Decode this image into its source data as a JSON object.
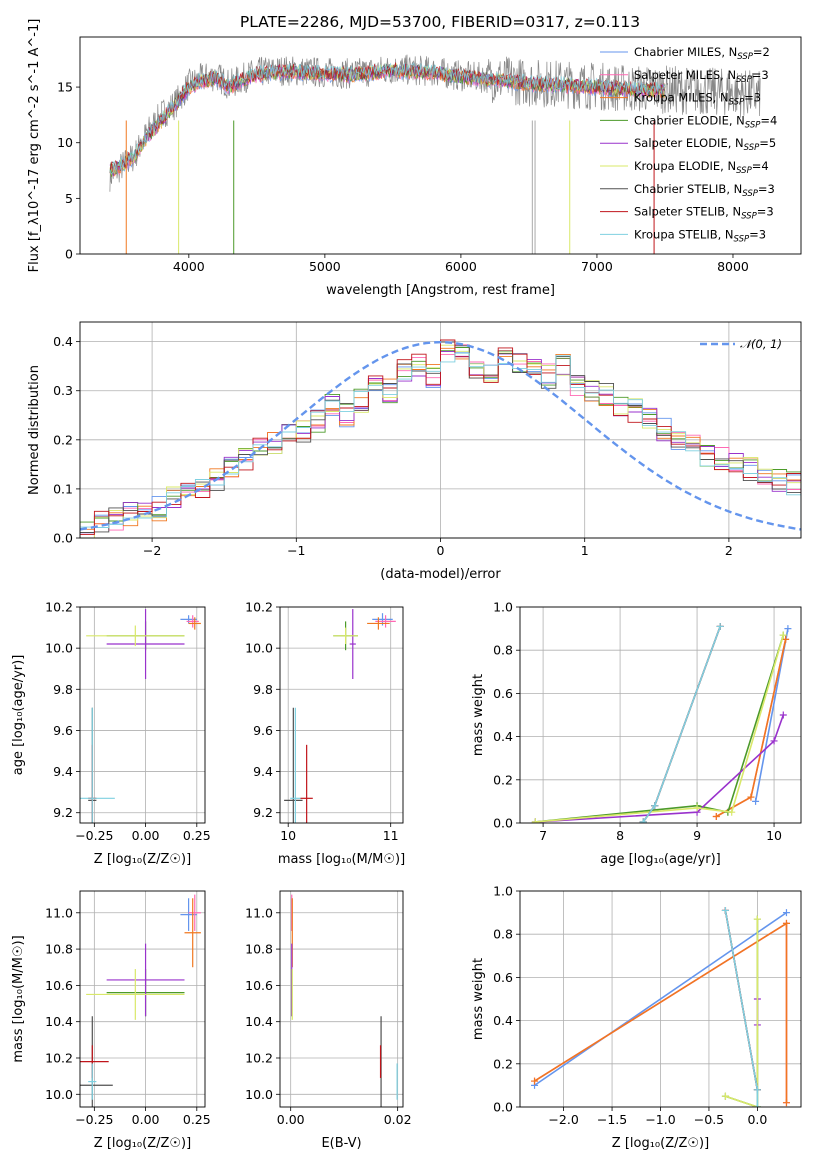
{
  "title": "PLATE=2286, MJD=53700, FIBERID=0317, z=0.113",
  "colors": {
    "chabrier_miles": "#6495ED",
    "salpeter_miles": "#FF69B4",
    "kroupa_miles": "#F07820",
    "chabrier_elodie": "#4C9A2A",
    "salpeter_elodie": "#9932CC",
    "kroupa_elodie": "#D9E86A",
    "chabrier_stelib": "#505050",
    "salpeter_stelib": "#C0151B",
    "kroupa_stelib": "#7FD0E0"
  },
  "chart_data": [
    {
      "type": "line",
      "panel": "spectrum",
      "xlabel": "wavelength [Angstrom, rest frame]",
      "ylabel": "Flux [f_λ10^-17 erg cm^-2 s^-1 A^-1]",
      "xlim": [
        3200,
        8500
      ],
      "ylim": [
        0,
        19.5
      ],
      "xticks": [
        "4000",
        "5000",
        "6000",
        "7000",
        "8000"
      ],
      "yticks": [
        "0",
        "5",
        "10",
        "15"
      ],
      "grid": false,
      "legend_position": "top-right",
      "legend": [
        {
          "label": "Chabrier MILES, N",
          "sub": "SSP",
          "n": "=2"
        },
        {
          "label": "Salpeter MILES, N",
          "sub": "SSP",
          "n": "=3"
        },
        {
          "label": "Kroupa MILES, N",
          "sub": "SSP",
          "n": "=3"
        },
        {
          "label": "Chabrier ELODIE, N",
          "sub": "SSP",
          "n": "=4"
        },
        {
          "label": "Salpeter ELODIE, N",
          "sub": "SSP",
          "n": "=5"
        },
        {
          "label": "Kroupa ELODIE, N",
          "sub": "SSP",
          "n": "=4"
        },
        {
          "label": "Chabrier STELIB, N",
          "sub": "SSP",
          "n": "=3"
        },
        {
          "label": "Salpeter STELIB, N",
          "sub": "SSP",
          "n": "=3"
        },
        {
          "label": "Kroupa STELIB, N",
          "sub": "SSP",
          "n": "=3"
        }
      ],
      "data_series": {
        "name": "data",
        "x": [
          3420,
          3500,
          3600,
          3700,
          3800,
          3900,
          4000,
          4100,
          4200,
          4300,
          4400,
          4500,
          4700,
          5000,
          5200,
          5500,
          5800,
          6000,
          6300,
          6500,
          6700,
          7000,
          7200,
          7500,
          7800,
          8000,
          8200
        ],
        "y": [
          7.0,
          7.8,
          8.8,
          11.0,
          12.5,
          13.5,
          15.2,
          15.8,
          16.0,
          15.2,
          15.8,
          16.3,
          16.5,
          16.3,
          16.2,
          16.6,
          16.4,
          16.0,
          15.7,
          15.4,
          15.3,
          15.1,
          14.9,
          14.8,
          14.6,
          14.5,
          14.3
        ]
      },
      "model_series": {
        "x": [
          3420,
          3500,
          3600,
          3700,
          3800,
          3900,
          4000,
          4100,
          4200,
          4300,
          4400,
          4500,
          4700,
          5000,
          5200,
          5500,
          5800,
          6000,
          6300,
          6500,
          6700,
          7000,
          7200,
          7500
        ],
        "y": [
          7.5,
          7.9,
          8.8,
          10.6,
          12.0,
          13.4,
          15.0,
          15.6,
          15.8,
          15.0,
          15.7,
          16.1,
          16.4,
          16.2,
          16.1,
          16.5,
          16.3,
          15.9,
          15.6,
          15.3,
          15.2,
          15.0,
          14.8,
          14.7
        ]
      }
    },
    {
      "type": "line",
      "panel": "residual-histogram",
      "xlabel": "(data-model)/error",
      "ylabel": "Normed distribution",
      "xlim": [
        -2.5,
        2.5
      ],
      "ylim": [
        0,
        0.44
      ],
      "xticks": [
        "−2",
        "−1",
        "0",
        "1",
        "2"
      ],
      "yticks": [
        "0.0",
        "0.1",
        "0.2",
        "0.3",
        "0.4"
      ],
      "grid": true,
      "legend_position": "top-right",
      "legend": [
        "𝒩(0, 1)"
      ],
      "gaussian_label": "𝒩(0, 1)",
      "bin_edges_start": -2.5,
      "bin_width": 0.1,
      "hist_values": [
        0.02,
        0.03,
        0.04,
        0.05,
        0.05,
        0.06,
        0.08,
        0.09,
        0.1,
        0.12,
        0.14,
        0.16,
        0.18,
        0.19,
        0.21,
        0.22,
        0.24,
        0.27,
        0.25,
        0.28,
        0.32,
        0.3,
        0.34,
        0.35,
        0.33,
        0.38,
        0.37,
        0.35,
        0.33,
        0.37,
        0.36,
        0.34,
        0.33,
        0.35,
        0.31,
        0.3,
        0.29,
        0.27,
        0.26,
        0.24,
        0.22,
        0.2,
        0.19,
        0.17,
        0.16,
        0.15,
        0.14,
        0.13,
        0.12,
        0.11
      ],
      "series_names_from_spectrum_legend": true
    },
    {
      "type": "scatter",
      "panel": "Z-vs-age",
      "xlabel": "Z [log₁₀(Z/Z☉)]",
      "ylabel": "age [log₁₀(age/yr)]",
      "xlim": [
        -0.32,
        0.29
      ],
      "ylim": [
        9.15,
        10.2
      ],
      "xticks": [
        "−0.25",
        "0.00",
        "0.25"
      ],
      "yticks": [
        "9.2",
        "9.4",
        "9.6",
        "9.8",
        "10.0",
        "10.2"
      ],
      "grid": true,
      "points": [
        {
          "s": "chabrier_miles",
          "x": 0.21,
          "y": 10.14,
          "ex": 0.04,
          "ey": 0.02
        },
        {
          "s": "salpeter_miles",
          "x": 0.23,
          "y": 10.13,
          "ex": 0.03,
          "ey": 0.03
        },
        {
          "s": "kroupa_miles",
          "x": 0.24,
          "y": 10.12,
          "ex": 0.03,
          "ey": 0.03
        },
        {
          "s": "chabrier_elodie",
          "x": 0.0,
          "y": 10.06,
          "ex": 0.19,
          "ey": 0.07
        },
        {
          "s": "salpeter_elodie",
          "x": 0.0,
          "y": 10.02,
          "ex": 0.19,
          "ey": 0.17
        },
        {
          "s": "kroupa_elodie",
          "x": -0.05,
          "y": 10.06,
          "ex": 0.24,
          "ey": 0.05
        },
        {
          "s": "chabrier_stelib",
          "x": -0.26,
          "y": 9.26,
          "ex": 0.02,
          "ey": 0.45
        },
        {
          "s": "salpeter_stelib",
          "x": -0.26,
          "y": 9.27,
          "ex": 0.02,
          "ey": 0.26
        },
        {
          "s": "kroupa_stelib",
          "x": -0.26,
          "y": 9.27,
          "ex": 0.11,
          "ey": 0.44
        }
      ]
    },
    {
      "type": "scatter",
      "panel": "mass-vs-age",
      "xlabel": "mass [log₁₀(M/M☉)]",
      "xlim": [
        9.92,
        11.12
      ],
      "ylim": [
        9.15,
        10.2
      ],
      "xticks": [
        "10",
        "11"
      ],
      "yticks": [
        "9.2",
        "9.4",
        "9.6",
        "9.8",
        "10.0",
        "10.2"
      ],
      "grid": true,
      "points": [
        {
          "s": "chabrier_miles",
          "x": 10.92,
          "y": 10.14,
          "ex": 0.1,
          "ey": 0.03
        },
        {
          "s": "salpeter_miles",
          "x": 10.95,
          "y": 10.13,
          "ex": 0.1,
          "ey": 0.03
        },
        {
          "s": "kroupa_miles",
          "x": 10.88,
          "y": 10.12,
          "ex": 0.11,
          "ey": 0.03
        },
        {
          "s": "chabrier_elodie",
          "x": 10.56,
          "y": 10.06,
          "ex": 0.12,
          "ey": 0.07
        },
        {
          "s": "salpeter_elodie",
          "x": 10.63,
          "y": 10.02,
          "ex": 0.03,
          "ey": 0.17
        },
        {
          "s": "kroupa_elodie",
          "x": 10.56,
          "y": 10.06,
          "ex": 0.12,
          "ey": 0.04
        },
        {
          "s": "chabrier_stelib",
          "x": 10.05,
          "y": 9.26,
          "ex": 0.09,
          "ey": 0.45
        },
        {
          "s": "salpeter_stelib",
          "x": 10.18,
          "y": 9.27,
          "ex": 0.06,
          "ey": 0.26
        },
        {
          "s": "kroupa_stelib",
          "x": 10.07,
          "y": 9.27,
          "ex": 0.05,
          "ey": 0.44
        }
      ]
    },
    {
      "type": "line",
      "panel": "age-vs-mass-weight",
      "xlabel": "age [log₁₀(age/yr)]",
      "ylabel": "mass weight",
      "xlim": [
        6.7,
        10.35
      ],
      "ylim": [
        0,
        1.0
      ],
      "xticks": [
        "7",
        "8",
        "9",
        "10"
      ],
      "yticks": [
        "0.0",
        "0.2",
        "0.4",
        "0.6",
        "0.8",
        "1.0"
      ],
      "grid": true,
      "series": [
        {
          "s": "chabrier_miles",
          "x": [
            9.76,
            10.18
          ],
          "y": [
            0.1,
            0.9
          ]
        },
        {
          "s": "salpeter_miles",
          "x": [
            9.25,
            9.7,
            10.15
          ],
          "y": [
            0.03,
            0.12,
            0.85
          ]
        },
        {
          "s": "kroupa_miles",
          "x": [
            9.25,
            9.7,
            10.15
          ],
          "y": [
            0.03,
            0.12,
            0.85
          ]
        },
        {
          "s": "chabrier_elodie",
          "x": [
            6.9,
            9.0,
            9.4,
            10.12
          ],
          "y": [
            0.005,
            0.08,
            0.05,
            0.87
          ]
        },
        {
          "s": "salpeter_elodie",
          "x": [
            6.9,
            9.0,
            10.0,
            10.12
          ],
          "y": [
            0.005,
            0.05,
            0.38,
            0.5
          ]
        },
        {
          "s": "kroupa_elodie",
          "x": [
            6.9,
            9.0,
            9.45,
            10.12
          ],
          "y": [
            0.005,
            0.07,
            0.05,
            0.87
          ]
        },
        {
          "s": "chabrier_stelib",
          "x": [
            8.3,
            8.45,
            9.3
          ],
          "y": [
            0.005,
            0.08,
            0.91
          ]
        },
        {
          "s": "salpeter_stelib",
          "x": [
            8.3,
            8.45,
            9.3
          ],
          "y": [
            0.005,
            0.08,
            0.91
          ]
        },
        {
          "s": "kroupa_stelib",
          "x": [
            8.3,
            8.45,
            9.3
          ],
          "y": [
            0.005,
            0.08,
            0.91
          ]
        }
      ]
    },
    {
      "type": "scatter",
      "panel": "Z-vs-mass",
      "xlabel": "Z [log₁₀(Z/Z☉)]",
      "ylabel": "mass [log₁₀(M/M☉)]",
      "xlim": [
        -0.32,
        0.29
      ],
      "ylim": [
        9.93,
        11.12
      ],
      "xticks": [
        "−0.25",
        "0.00",
        "0.25"
      ],
      "yticks": [
        "10.0",
        "10.2",
        "10.4",
        "10.6",
        "10.8",
        "11.0"
      ],
      "grid": true,
      "points": [
        {
          "s": "chabrier_miles",
          "x": 0.21,
          "y": 10.99,
          "ex": 0.04,
          "ey": 0.09
        },
        {
          "s": "salpeter_miles",
          "x": 0.24,
          "y": 11.0,
          "ex": 0.03,
          "ey": 0.1
        },
        {
          "s": "kroupa_miles",
          "x": 0.23,
          "y": 10.89,
          "ex": 0.04,
          "ey": 0.19
        },
        {
          "s": "chabrier_elodie",
          "x": 0.0,
          "y": 10.56,
          "ex": 0.19,
          "ey": 0.13
        },
        {
          "s": "salpeter_elodie",
          "x": 0.0,
          "y": 10.63,
          "ex": 0.19,
          "ey": 0.2
        },
        {
          "s": "kroupa_elodie",
          "x": -0.05,
          "y": 10.55,
          "ex": 0.24,
          "ey": 0.14
        },
        {
          "s": "chabrier_stelib",
          "x": -0.26,
          "y": 10.05,
          "ex": 0.1,
          "ey": 0.38
        },
        {
          "s": "salpeter_stelib",
          "x": -0.26,
          "y": 10.18,
          "ex": 0.08,
          "ey": 0.09
        },
        {
          "s": "kroupa_stelib",
          "x": -0.26,
          "y": 10.07,
          "ex": 0.02,
          "ey": 0.1
        }
      ]
    },
    {
      "type": "scatter",
      "panel": "EBV-vs-mass",
      "xlabel": "E(B-V)",
      "xlim": [
        -0.002,
        0.021
      ],
      "ylim": [
        9.93,
        11.12
      ],
      "xticks": [
        "0.00",
        "0.02"
      ],
      "yticks": [
        "10.0",
        "10.2",
        "10.4",
        "10.6",
        "10.8",
        "11.0"
      ],
      "grid": true,
      "points": [
        {
          "s": "chabrier_miles",
          "x": 0.0002,
          "y": 10.99,
          "ex": 0,
          "ey": 0.09
        },
        {
          "s": "salpeter_miles",
          "x": 0.0002,
          "y": 11.0,
          "ex": 0,
          "ey": 0.1
        },
        {
          "s": "kroupa_miles",
          "x": 0.0003,
          "y": 10.89,
          "ex": 0,
          "ey": 0.19
        },
        {
          "s": "chabrier_elodie",
          "x": 0.0002,
          "y": 10.56,
          "ex": 0,
          "ey": 0.13
        },
        {
          "s": "salpeter_elodie",
          "x": 0.0002,
          "y": 10.63,
          "ex": 0,
          "ey": 0.2
        },
        {
          "s": "kroupa_elodie",
          "x": 0.0003,
          "y": 10.55,
          "ex": 0,
          "ey": 0.14
        },
        {
          "s": "chabrier_stelib",
          "x": 0.0169,
          "y": 10.05,
          "ex": 0,
          "ey": 0.38
        },
        {
          "s": "salpeter_stelib",
          "x": 0.0168,
          "y": 10.18,
          "ex": 0,
          "ey": 0.09
        },
        {
          "s": "kroupa_stelib",
          "x": 0.0199,
          "y": 10.07,
          "ex": 0,
          "ey": 0.1
        }
      ]
    },
    {
      "type": "line",
      "panel": "Z-vs-mass-weight",
      "xlabel": "Z [log₁₀(Z/Z☉)]",
      "ylabel": "mass weight",
      "xlim": [
        -2.45,
        0.45
      ],
      "ylim": [
        0,
        1.0
      ],
      "xticks": [
        "−2.0",
        "−1.5",
        "−1.0",
        "−0.5",
        "0.0"
      ],
      "yticks": [
        "0.0",
        "0.2",
        "0.4",
        "0.6",
        "0.8",
        "1.0"
      ],
      "grid": true,
      "series": [
        {
          "s": "chabrier_miles",
          "x": [
            -2.3,
            0.3
          ],
          "y": [
            0.1,
            0.9
          ]
        },
        {
          "s": "salpeter_miles",
          "x": [
            -2.3,
            0.3,
            0.3
          ],
          "y": [
            0.12,
            0.85,
            0.02
          ]
        },
        {
          "s": "kroupa_miles",
          "x": [
            -2.3,
            0.3,
            0.3
          ],
          "y": [
            0.12,
            0.85,
            0.02
          ]
        },
        {
          "s": "chabrier_elodie",
          "x": [
            0.0,
            0.0,
            -0.33,
            0.0
          ],
          "y": [
            0.87,
            0.0,
            0.05,
            0.0
          ]
        },
        {
          "s": "salpeter_elodie",
          "x": [
            0.0,
            0.0
          ],
          "y": [
            0.5,
            0.38
          ]
        },
        {
          "s": "kroupa_elodie",
          "x": [
            0.0,
            0.0,
            -0.33,
            0.0
          ],
          "y": [
            0.87,
            0.0,
            0.05,
            0.0
          ]
        },
        {
          "s": "chabrier_stelib",
          "x": [
            -0.33,
            0.0
          ],
          "y": [
            0.91,
            0.08
          ]
        },
        {
          "s": "salpeter_stelib",
          "x": [
            -0.33,
            0.0
          ],
          "y": [
            0.91,
            0.08
          ]
        },
        {
          "s": "kroupa_stelib",
          "x": [
            -0.33,
            0.0,
            0.0
          ],
          "y": [
            0.91,
            0.08,
            0.0
          ]
        }
      ]
    }
  ]
}
